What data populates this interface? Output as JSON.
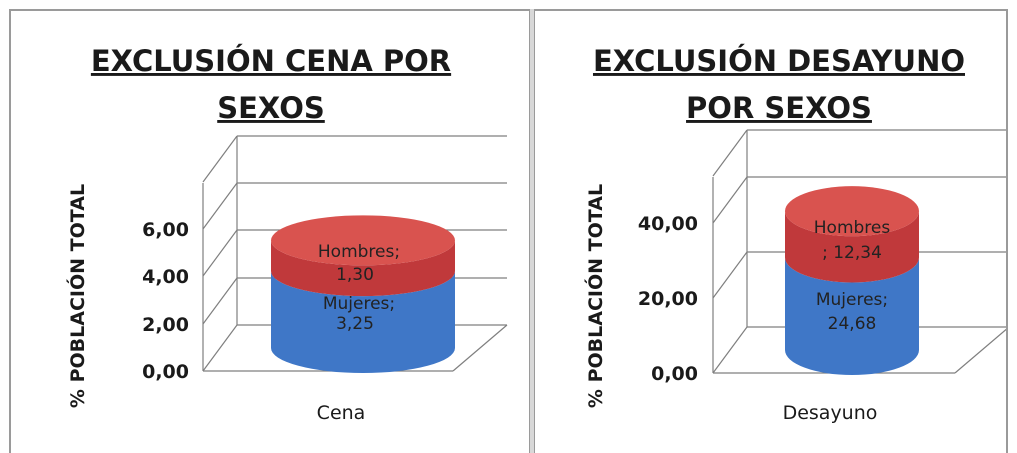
{
  "colors": {
    "hombres_top": "#d9534f",
    "hombres": "#c0393b",
    "mujeres": "#3f77c7",
    "grid": "#7f7f7f",
    "text": "#1a1a1a"
  },
  "chart_data": [
    {
      "type": "bar",
      "style": "3d-stacked-cylinder",
      "title_lines": [
        "EXCLUSIÓN CENA POR",
        "SEXOS"
      ],
      "ylabel": "% POBLACIÓN TOTAL",
      "xlabel": "",
      "categories": [
        "Cena"
      ],
      "yticks": [
        "0,00",
        "2,00",
        "4,00",
        "6,00"
      ],
      "ylim": [
        0,
        6
      ],
      "grid": true,
      "series": [
        {
          "name": "Mujeres",
          "values": [
            3.25
          ],
          "label": [
            "Mujeres;",
            "3,25"
          ],
          "color": "#3f77c7"
        },
        {
          "name": "Hombres",
          "values": [
            1.3
          ],
          "label": [
            "Hombres;",
            "1,30"
          ],
          "color": "#c0393b"
        }
      ]
    },
    {
      "type": "bar",
      "style": "3d-stacked-cylinder",
      "title_lines": [
        "EXCLUSIÓN DESAYUNO",
        "POR SEXOS"
      ],
      "ylabel": "% POBLACIÓN TOTAL",
      "xlabel": "",
      "categories": [
        "Desayuno"
      ],
      "yticks": [
        "0,00",
        "20,00",
        "40,00"
      ],
      "ylim": [
        0,
        40
      ],
      "grid": true,
      "series": [
        {
          "name": "Mujeres",
          "values": [
            24.68
          ],
          "label": [
            "Mujeres;",
            "24,68"
          ],
          "color": "#3f77c7"
        },
        {
          "name": "Hombres",
          "values": [
            12.34
          ],
          "label": [
            "Hombres",
            "; 12,34"
          ],
          "color": "#c0393b"
        }
      ]
    }
  ]
}
